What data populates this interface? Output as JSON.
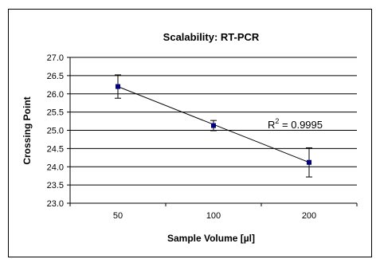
{
  "chart_data": {
    "type": "scatter",
    "title": "Scalability: RT-PCR",
    "xlabel": "Sample Volume [µl]",
    "ylabel": "Crossing Point",
    "categories": [
      "50",
      "100",
      "200"
    ],
    "ylim": [
      23.0,
      27.0
    ],
    "ytick_step": 0.5,
    "yticks": [
      "23.0",
      "23.5",
      "24.0",
      "24.5",
      "25.0",
      "25.5",
      "26.0",
      "26.5",
      "27.0"
    ],
    "series": [
      {
        "values": [
          26.2,
          25.13,
          24.12
        ],
        "error": [
          0.32,
          0.14,
          0.4
        ],
        "color": "#000080"
      }
    ],
    "trendline": {
      "type": "linear",
      "start": 26.2,
      "end": 24.12
    },
    "annotation": {
      "prefix": "R",
      "superscript": "2",
      "suffix": " = 0.9995"
    },
    "grid": true,
    "legend": "none"
  }
}
